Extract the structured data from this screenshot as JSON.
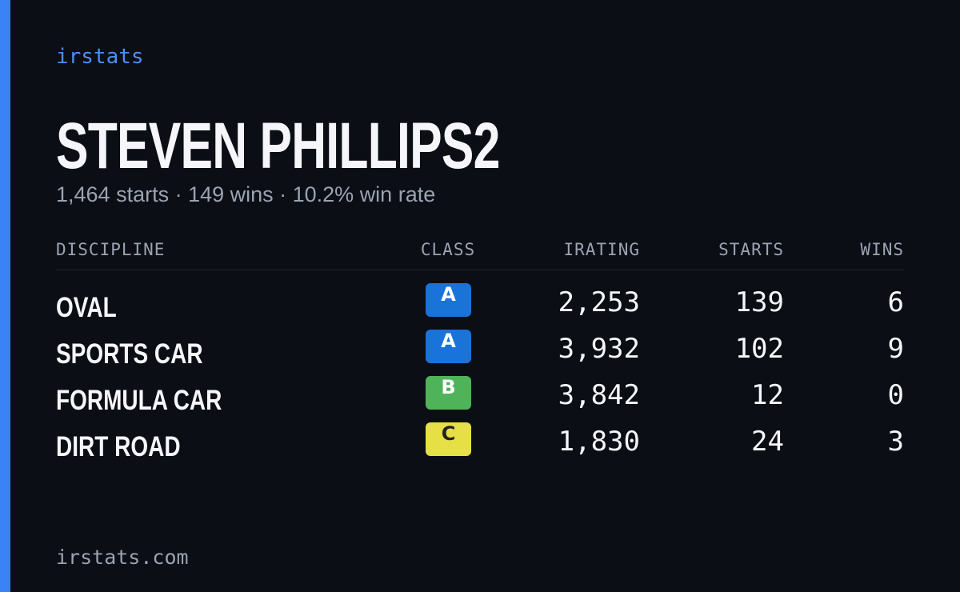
{
  "brand": "irstats",
  "title": "STEVEN PHILLIPS2",
  "subtitle": "1,464 starts · 149 wins · 10.2% win rate",
  "table": {
    "columns": [
      "DISCIPLINE",
      "CLASS",
      "IRATING",
      "STARTS",
      "WINS"
    ],
    "rows": [
      [
        "OVAL",
        "A",
        "2,253",
        "139",
        "6"
      ],
      [
        "SPORTS CAR",
        "A",
        "3,932",
        "102",
        "9"
      ],
      [
        "FORMULA CAR",
        "B",
        "3,842",
        "12",
        "0"
      ],
      [
        "DIRT ROAD",
        "C",
        "1,830",
        "24",
        "3"
      ]
    ]
  },
  "footer": "irstats.com"
}
